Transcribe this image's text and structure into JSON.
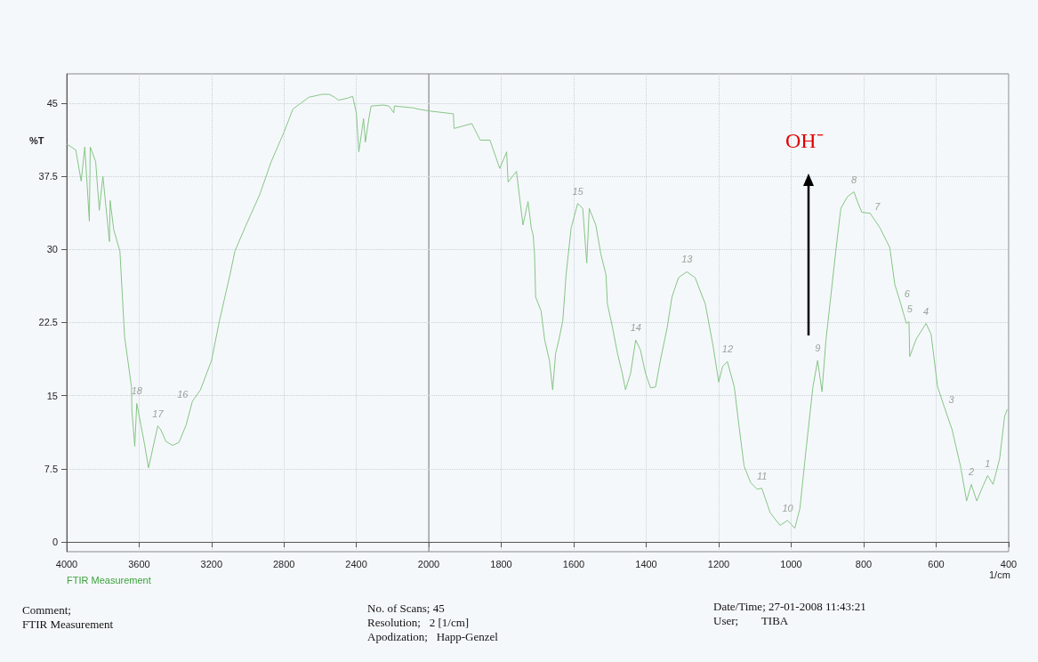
{
  "chart_data": [
    {
      "type": "line",
      "ylabel": "%T",
      "x": [
        4000,
        3950,
        3920,
        3900,
        3875,
        3870,
        3840,
        3820,
        3800,
        3764,
        3760,
        3740,
        3706,
        3691,
        3680,
        3642,
        3640,
        3624,
        3613,
        3590,
        3570,
        3548,
        3497,
        3480,
        3452,
        3415,
        3380,
        3340,
        3306,
        3261,
        3200,
        3156,
        3098,
        3071,
        3016,
        2934,
        2870,
        2800,
        2750,
        2662,
        2589,
        2550,
        2520,
        2499,
        2450,
        2420,
        2400,
        2386,
        2360,
        2350,
        2330,
        2318,
        2250,
        2220,
        2193,
        2190,
        2081,
        2064,
        2000
      ],
      "values": [
        40.8,
        40.2,
        37,
        40.5,
        32.9,
        40.5,
        39,
        34,
        37.5,
        30.8,
        35,
        32,
        29.8,
        24.7,
        21,
        15.9,
        13.5,
        9.8,
        14.2,
        12,
        10,
        7.6,
        11.9,
        11.5,
        10.3,
        9.9,
        10.2,
        12,
        14.4,
        15.6,
        18.6,
        22.7,
        27.4,
        29.8,
        32.2,
        35.6,
        39,
        42,
        44.4,
        45.6,
        45.9,
        45.9,
        45.6,
        45.3,
        45.5,
        45.7,
        44,
        40,
        43.4,
        41,
        43.5,
        44.7,
        44.8,
        44.7,
        44,
        44.7,
        44.5,
        44.4,
        44.2
      ],
      "color": "#86c586",
      "xlim": [
        4000,
        2000
      ],
      "xticks": [
        4000,
        3600,
        3200,
        2800,
        2400,
        2000
      ],
      "ylim": [
        -1,
        48
      ],
      "yticks": [
        0,
        7.5,
        15,
        22.5,
        30,
        37.5,
        45
      ],
      "grid": true,
      "marker": "none",
      "line_style": "solid",
      "annotations": [
        {
          "text": "18",
          "x": 3613,
          "y": 14.2
        },
        {
          "text": "17",
          "x": 3497,
          "y": 11.9
        },
        {
          "text": "16",
          "x": 3306,
          "y": 14.4
        },
        "FTIR Measurement",
        "Comment;\nFTIR Measurement",
        "No. of Scans; 45\nResolution;   2 [1/cm]\nApodization;   Happ-Genzel"
      ]
    },
    {
      "type": "line",
      "xlabel": "1/cm",
      "x": [
        2000,
        1932,
        1930,
        1881,
        1858,
        1831,
        1804,
        1785,
        1781,
        1758,
        1740,
        1726,
        1717,
        1712,
        1708,
        1705,
        1690,
        1680,
        1667,
        1658,
        1650,
        1641,
        1630,
        1621,
        1607,
        1589,
        1575,
        1564,
        1557,
        1539,
        1525,
        1511,
        1507,
        1493,
        1479,
        1466,
        1457,
        1443,
        1429,
        1416,
        1402,
        1388,
        1374,
        1361,
        1342,
        1329,
        1311,
        1288,
        1265,
        1237,
        1215,
        1200,
        1189,
        1176,
        1157,
        1144,
        1130,
        1112,
        1094,
        1081,
        1058,
        1031,
        1010,
        990,
        976,
        958,
        940,
        927,
        915,
        904,
        890,
        877,
        863,
        845,
        827,
        814,
        805,
        782,
        755,
        728,
        714,
        700,
        682,
        675,
        673,
        655,
        628,
        614,
        596,
        578,
        556,
        533,
        516,
        503,
        488,
        470,
        458,
        443,
        425,
        411,
        404
      ],
      "values": [
        44.2,
        43.9,
        42.4,
        42.9,
        41.2,
        41.2,
        38.3,
        40,
        36.9,
        38,
        32.5,
        34.9,
        32.2,
        31.5,
        29.5,
        25.1,
        23.7,
        20.7,
        18.6,
        15.6,
        19.3,
        20.7,
        22.7,
        27.4,
        32.2,
        34.7,
        34.2,
        28.6,
        34.2,
        32.5,
        29.5,
        27.4,
        24.4,
        22,
        19.3,
        17.3,
        15.6,
        17.3,
        20.7,
        19.7,
        17.3,
        15.8,
        15.9,
        18.6,
        22,
        25.1,
        27.1,
        27.7,
        27.1,
        24.4,
        20,
        16.4,
        18,
        18.5,
        15.9,
        11.9,
        7.8,
        6.1,
        5.4,
        5.5,
        3,
        1.7,
        2.2,
        1.4,
        3.4,
        9.8,
        15.9,
        18.6,
        15.4,
        20.7,
        25.4,
        29.8,
        34.2,
        35.4,
        35.9,
        34.6,
        33.8,
        33.7,
        32.2,
        30.2,
        26.4,
        24.7,
        22.4,
        22.6,
        19,
        20.8,
        22.4,
        21.3,
        15.9,
        13.9,
        11.5,
        7.8,
        4.2,
        5.9,
        4.2,
        5.8,
        6.8,
        5.9,
        8.5,
        12.9,
        13.6
      ],
      "color": "#86c586",
      "xlim": [
        2000,
        400
      ],
      "xticks": [
        1800,
        1600,
        1400,
        1200,
        1000,
        800,
        600,
        400
      ],
      "ylim": [
        -1,
        48
      ],
      "yticks": [
        0,
        7.5,
        15,
        22.5,
        30,
        37.5,
        45
      ],
      "grid": true,
      "marker": "none",
      "line_style": "solid",
      "tick_labels": "x",
      "annotations": [
        "OH⁻",
        {
          "text": "15",
          "x": 1589,
          "y": 34.7
        },
        {
          "text": "14",
          "x": 1429,
          "y": 20.7
        },
        {
          "text": "13",
          "x": 1288,
          "y": 27.7
        },
        {
          "text": "12",
          "x": 1176,
          "y": 18.5
        },
        {
          "text": "11",
          "x": 1081,
          "y": 5.5
        },
        {
          "text": "10",
          "x": 1010,
          "y": 2.2
        },
        {
          "text": "9",
          "x": 927,
          "y": 18.6
        },
        {
          "text": "8",
          "x": 827,
          "y": 35.9
        },
        {
          "text": "7",
          "x": 782,
          "y": 33.7
        },
        {
          "text": "6",
          "x": 700,
          "y": 24.7
        },
        {
          "text": "5",
          "x": 673,
          "y": 22.6
        },
        {
          "text": "4",
          "x": 628,
          "y": 22.4
        },
        {
          "text": "3",
          "x": 578,
          "y": 13.9
        },
        {
          "text": "2",
          "x": 503,
          "y": 5.9
        },
        {
          "text": "1",
          "x": 458,
          "y": 6.8
        },
        "Date/Time; 27-01-2008 11:43:21\nUser;        TIBA"
      ]
    }
  ]
}
